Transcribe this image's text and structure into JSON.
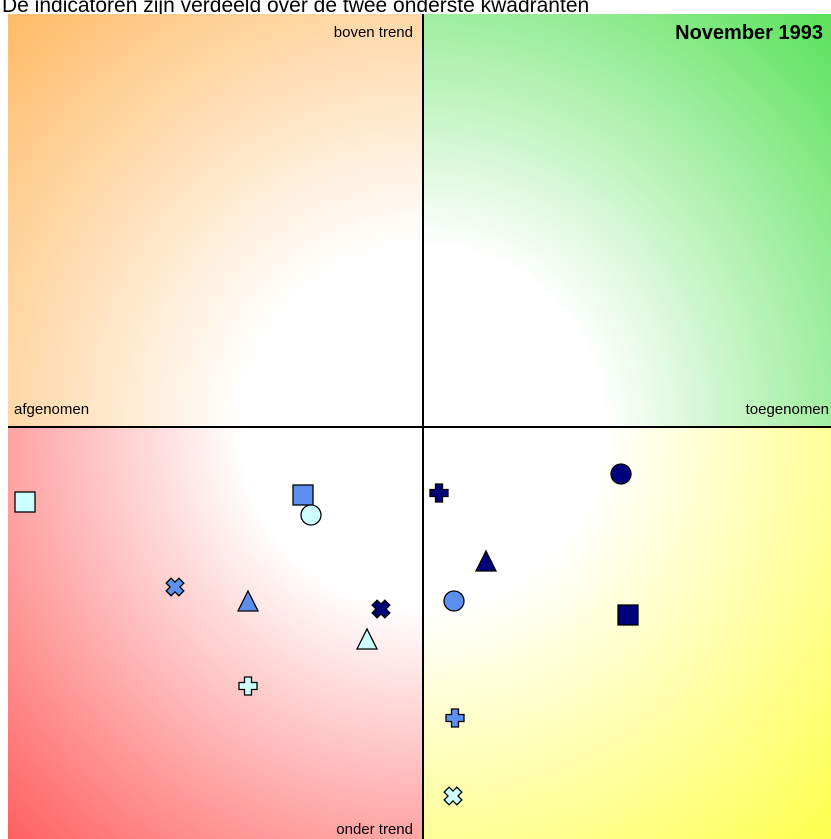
{
  "chart_data": {
    "type": "scatter",
    "title": "De indicatoren zijn verdeeld over de twee onderste kwadranten",
    "annotation": "November 1993",
    "quadrant_labels": {
      "top": "boven trend",
      "bottom": "onder trend",
      "left": "afgenomen",
      "right": "toegenomen"
    },
    "xlim": [
      -415,
      408
    ],
    "ylim": [
      -412,
      413
    ],
    "x": [
      -398,
      -120,
      -112,
      16,
      198,
      63,
      31,
      205,
      -248,
      -175,
      -42,
      -56,
      -175,
      32,
      30
    ],
    "y": [
      -75,
      -68,
      -88,
      -66,
      -47,
      -135,
      -174,
      -188,
      -160,
      -175,
      -182,
      -213,
      -259,
      -291,
      -369
    ],
    "markers": [
      "square",
      "square",
      "circle",
      "plus",
      "circle",
      "triangle",
      "circle",
      "square",
      "cross",
      "triangle",
      "cross",
      "triangle",
      "plus",
      "plus",
      "cross"
    ],
    "colors": [
      "#ccffff",
      "#5b8ff0",
      "#ccffff",
      "#00007a",
      "#00007a",
      "#00007a",
      "#5b8ff0",
      "#00007a",
      "#5b8ff0",
      "#5b8ff0",
      "#00007a",
      "#ccffff",
      "#ccffff",
      "#5b8ff0",
      "#ccffff"
    ],
    "quadrant_colors": [
      "#ffb860",
      "#50e050",
      "#ff5a5a",
      "#ffff44"
    ]
  }
}
